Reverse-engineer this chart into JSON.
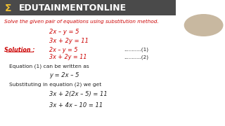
{
  "bg_color": "#ffffff",
  "header_bg": "#4a4a4a",
  "header_color": "#f0c030",
  "problem_intro": "Solve the given pair of equations using substitution method.",
  "eq1_display": "2x – y = 5",
  "eq2_display": "3x + 2y = 11",
  "solution_label": "Solution :",
  "sol_eq1": "2x – y = 5",
  "sol_eq1_num": "...........(1)",
  "sol_eq2": "3x + 2y = 11",
  "sol_eq2_num": "...........(2)",
  "step1_text": "Equation (1) can be written as",
  "step1_eq": "y = 2x – 5",
  "step2_text": "Substituting in equation (2) we get",
  "step2_eq1": "3x + 2(2x – 5) = 11",
  "step2_eq2": "3x + 4x – 10 = 11",
  "red_color": "#cc0000",
  "dark_color": "#222222",
  "intro_color": "#cc0000"
}
